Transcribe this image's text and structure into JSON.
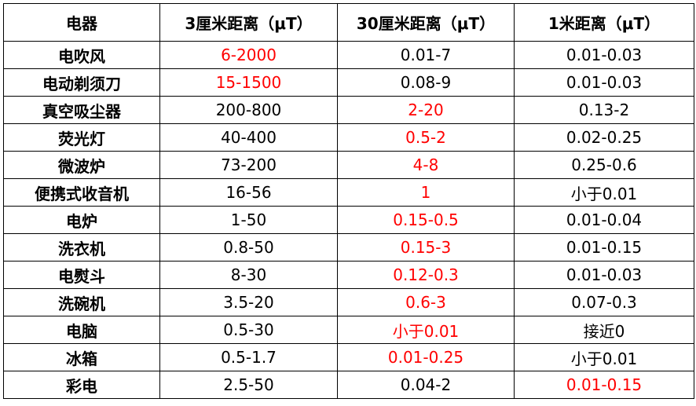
{
  "table": {
    "headers": [
      "电器",
      "3厘米距离（μT）",
      "30厘米距离（μT）",
      "1米距离（μT）"
    ],
    "highlight_color": "#ff0000",
    "rows": [
      {
        "name": "电吹风",
        "cells": [
          {
            "value": "6-2000",
            "red": true
          },
          {
            "value": "0.01-7",
            "red": false
          },
          {
            "value": "0.01-0.03",
            "red": false
          }
        ]
      },
      {
        "name": "电动剃须刀",
        "cells": [
          {
            "value": "15-1500",
            "red": true
          },
          {
            "value": "0.08-9",
            "red": false
          },
          {
            "value": "0.01-0.03",
            "red": false
          }
        ]
      },
      {
        "name": "真空吸尘器",
        "cells": [
          {
            "value": "200-800",
            "red": false
          },
          {
            "value": "2-20",
            "red": true
          },
          {
            "value": "0.13-2",
            "red": false
          }
        ]
      },
      {
        "name": "荧光灯",
        "cells": [
          {
            "value": "40-400",
            "red": false
          },
          {
            "value": "0.5-2",
            "red": true
          },
          {
            "value": "0.02-0.25",
            "red": false
          }
        ]
      },
      {
        "name": "微波炉",
        "cells": [
          {
            "value": "73-200",
            "red": false
          },
          {
            "value": "4-8",
            "red": true
          },
          {
            "value": "0.25-0.6",
            "red": false
          }
        ]
      },
      {
        "name": "便携式收音机",
        "cells": [
          {
            "value": "16-56",
            "red": false
          },
          {
            "value": "1",
            "red": true
          },
          {
            "value": "小于0.01",
            "red": false
          }
        ]
      },
      {
        "name": "电炉",
        "cells": [
          {
            "value": "1-50",
            "red": false
          },
          {
            "value": "0.15-0.5",
            "red": true
          },
          {
            "value": "0.01-0.04",
            "red": false
          }
        ]
      },
      {
        "name": "洗衣机",
        "cells": [
          {
            "value": "0.8-50",
            "red": false
          },
          {
            "value": "0.15-3",
            "red": true
          },
          {
            "value": "0.01-0.15",
            "red": false
          }
        ]
      },
      {
        "name": "电熨斗",
        "cells": [
          {
            "value": "8-30",
            "red": false
          },
          {
            "value": "0.12-0.3",
            "red": true
          },
          {
            "value": "0.01-0.03",
            "red": false
          }
        ]
      },
      {
        "name": "洗碗机",
        "cells": [
          {
            "value": "3.5-20",
            "red": false
          },
          {
            "value": "0.6-3",
            "red": true
          },
          {
            "value": "0.07-0.3",
            "red": false
          }
        ]
      },
      {
        "name": "电脑",
        "cells": [
          {
            "value": "0.5-30",
            "red": false
          },
          {
            "value": "小于0.01",
            "red": true
          },
          {
            "value": "接近0",
            "red": false
          }
        ]
      },
      {
        "name": "冰箱",
        "cells": [
          {
            "value": "0.5-1.7",
            "red": false
          },
          {
            "value": "0.01-0.25",
            "red": true
          },
          {
            "value": "小于0.01",
            "red": false
          }
        ]
      },
      {
        "name": "彩电",
        "cells": [
          {
            "value": "2.5-50",
            "red": false
          },
          {
            "value": "0.04-2",
            "red": false
          },
          {
            "value": "0.01-0.15",
            "red": true
          }
        ]
      }
    ]
  }
}
